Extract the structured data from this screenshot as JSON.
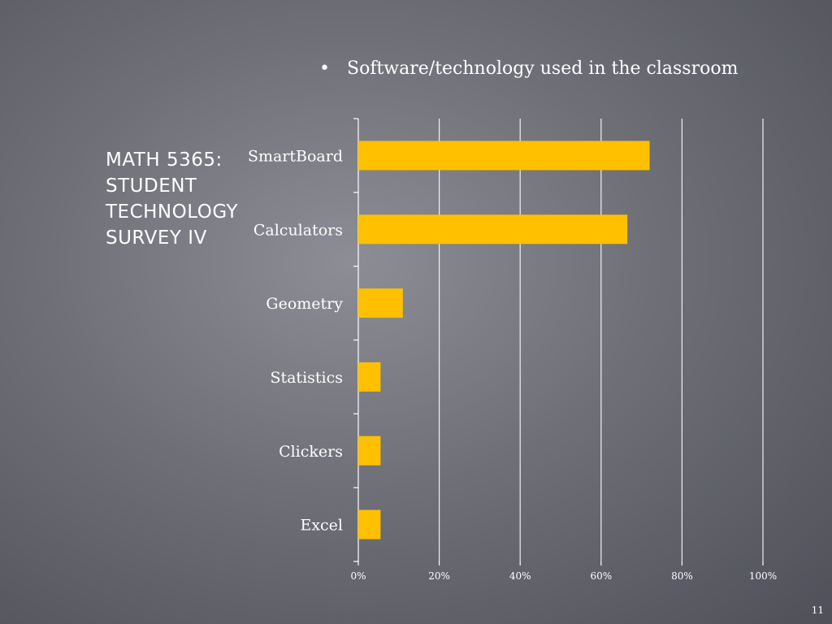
{
  "slide": {
    "title": "MATH 5365: STUDENT TECHNOLOGY SURVEY IV",
    "bullet": "Software/technology used in the classroom",
    "bullet_marker": "•",
    "slide_number": "11"
  },
  "colors": {
    "bar": "#FFC000",
    "text": "#FFFFFF",
    "grid": "#FFFFFF"
  },
  "chart_data": {
    "type": "bar",
    "orientation": "horizontal",
    "title": "",
    "xlabel": "",
    "ylabel": "",
    "categories": [
      "SmartBoard",
      "Calculators",
      "Geometry",
      "Statistics",
      "Clickers",
      "Excel"
    ],
    "values": [
      72,
      66.5,
      11,
      5.5,
      5.5,
      5.5
    ],
    "unit": "%",
    "xlim": [
      0,
      100
    ],
    "x_ticks": [
      "0%",
      "20%",
      "40%",
      "60%",
      "80%",
      "100%"
    ],
    "grid": "vertical",
    "legend": "none"
  }
}
